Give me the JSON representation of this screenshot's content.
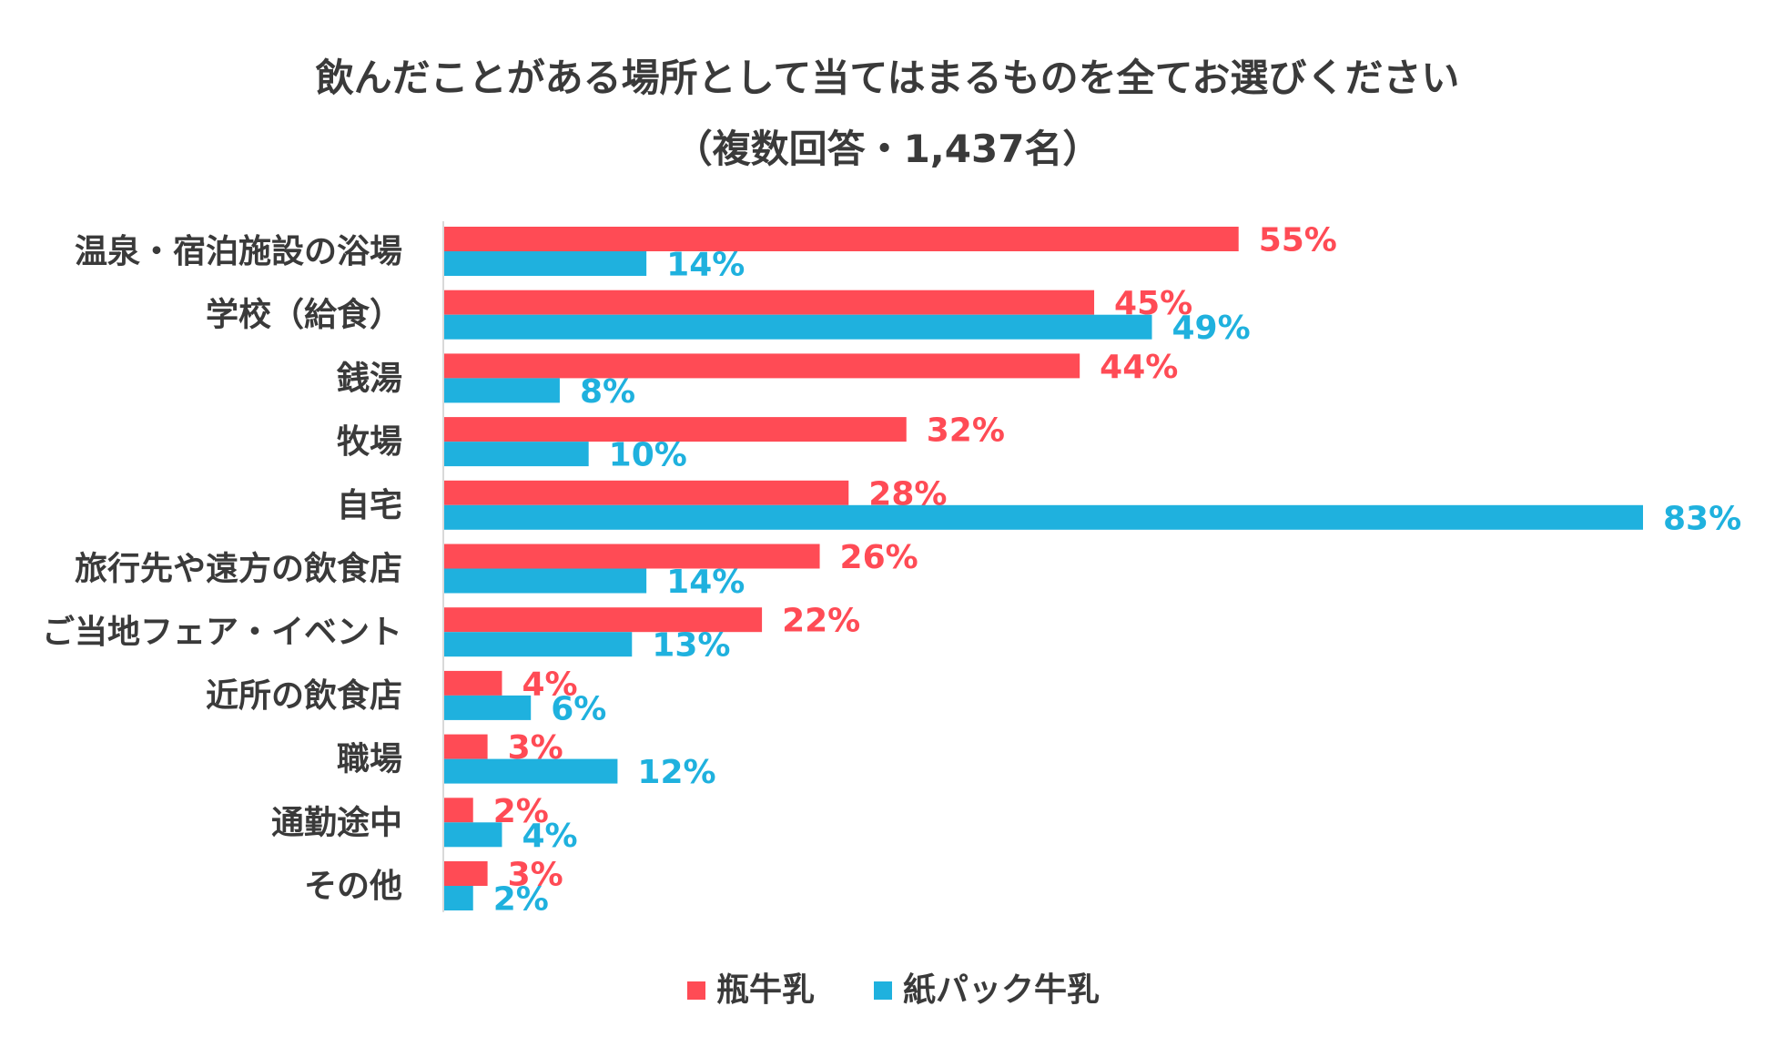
{
  "chart_data": {
    "type": "bar",
    "orientation": "horizontal",
    "title": "飲んだことがある場所として当てはまるものを全てお選びください",
    "subtitle": "（複数回答・1,437名）",
    "categories": [
      "温泉・宿泊施設の浴場",
      "学校（給食）",
      "銭湯",
      "牧場",
      "自宅",
      "旅行先や遠方の飲食店",
      "ご当地フェア・イベント",
      "近所の飲食店",
      "職場",
      "通勤途中",
      "その他"
    ],
    "series": [
      {
        "name": "瓶牛乳",
        "color": "#ff4b55",
        "values": [
          55,
          45,
          44,
          32,
          28,
          26,
          22,
          4,
          3,
          2,
          3
        ]
      },
      {
        "name": "紙パック牛乳",
        "color": "#1fb1de",
        "values": [
          14,
          49,
          8,
          10,
          83,
          14,
          13,
          6,
          12,
          4,
          2
        ]
      }
    ],
    "value_suffix": "%",
    "xlim": [
      0,
      83
    ],
    "grid": false,
    "legend": "bottom",
    "axis_color": "#d9d9d9",
    "label_color": "#3a3a3a"
  }
}
